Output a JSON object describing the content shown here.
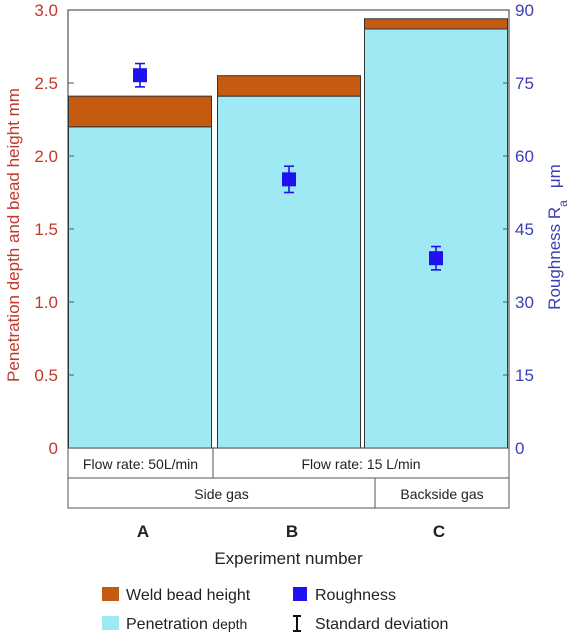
{
  "chart_data": {
    "type": "bar",
    "categories": [
      "A",
      "B",
      "C"
    ],
    "group_rows": [
      {
        "level": "flow_rate",
        "cells": [
          {
            "label": "Flow rate: 50L/min",
            "span": [
              "A"
            ]
          },
          {
            "label": "Flow rate: 15 L/min",
            "span": [
              "B",
              "C"
            ]
          }
        ]
      },
      {
        "level": "gas",
        "cells": [
          {
            "label": "Side gas",
            "span": [
              "A",
              "B"
            ]
          },
          {
            "label": "Backside gas",
            "span": [
              "C"
            ]
          }
        ]
      }
    ],
    "series": [
      {
        "name": "Penetration depth",
        "name_main": "Penetration ",
        "name_sub": "depth",
        "kind": "stacked-bar",
        "axis": "left",
        "values": [
          2.2,
          2.41,
          2.87
        ],
        "color": "#9ee9f3"
      },
      {
        "name": "Weld bead height",
        "kind": "stacked-bar",
        "axis": "left",
        "values": [
          0.21,
          0.14,
          0.07
        ],
        "color": "#c55a11"
      },
      {
        "name": "Roughness",
        "kind": "point",
        "axis": "right",
        "values": [
          76.6,
          55.2,
          39.0
        ],
        "error": [
          2.4,
          2.7,
          2.4
        ],
        "color": "#1f12ee"
      }
    ],
    "legend_extra": [
      "Standard deviation"
    ],
    "xlabel": "Experiment number",
    "ylabel_left": "Penetration depth and bead height   mm",
    "ylabel_right_main": "Roughness  R",
    "ylabel_right_sub": "a",
    "ylabel_right_unit": "μm",
    "ylim_left": [
      0,
      3.0
    ],
    "ylim_right": [
      0,
      90
    ],
    "yticks_left": [
      "0",
      "0.5",
      "1.0",
      "1.5",
      "2.0",
      "2.5",
      "3.0"
    ],
    "yticks_right": [
      "0",
      "15",
      "30",
      "45",
      "60",
      "75",
      "90"
    ],
    "grid": false,
    "legend_position": "bottom",
    "colors": {
      "left_axis": "#c0392b",
      "right_axis": "#3b3fb6",
      "frame": "#555555"
    }
  }
}
